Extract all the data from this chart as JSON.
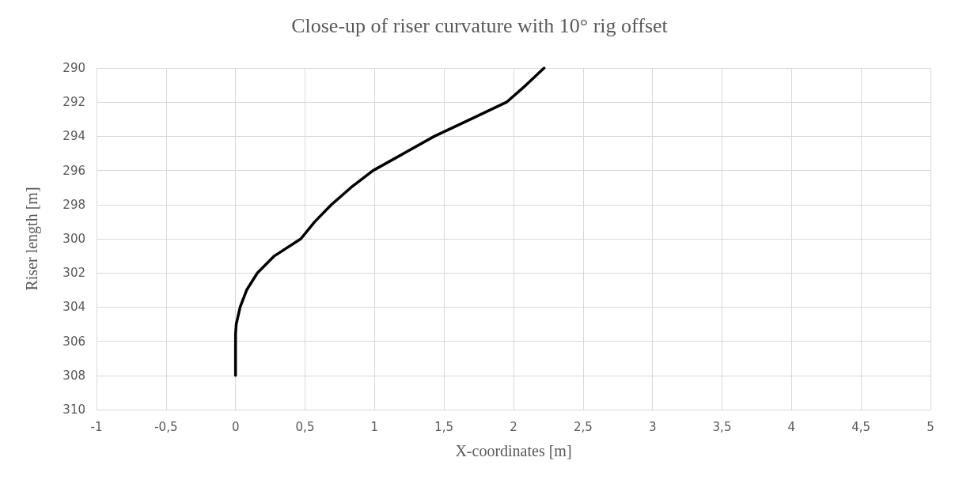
{
  "chart_data": {
    "type": "line",
    "title": "Close-up of riser curvature with 10° rig offset",
    "xlabel": "X-coordinates [m]",
    "ylabel": "Riser length [m]",
    "series": [
      {
        "color": "#000000",
        "x": [
          0,
          0,
          0.005,
          0.033,
          0.08,
          0.157,
          0.28,
          0.47,
          0.57,
          0.69,
          0.83,
          0.99,
          1.21,
          1.43,
          1.69,
          1.95,
          2.09,
          2.22
        ],
        "values": [
          308,
          305.6,
          305,
          304,
          303,
          302,
          301,
          300,
          299,
          298,
          297,
          296,
          295,
          294,
          293,
          292,
          291,
          290
        ]
      }
    ],
    "xlim": [
      -1,
      5
    ],
    "xticks": [
      -1,
      {
        "value": -0.5,
        "label": "-0,5"
      },
      0,
      {
        "value": 0.5,
        "label": "0,5"
      },
      1,
      {
        "value": 1.5,
        "label": "1,5"
      },
      2,
      {
        "value": 2.5,
        "label": "2,5"
      },
      3,
      {
        "value": 3.5,
        "label": "3,5"
      },
      4,
      {
        "value": 4.5,
        "label": "4,5"
      },
      5
    ],
    "ylim": [
      310,
      290
    ],
    "yticks": [
      290,
      292,
      294,
      296,
      298,
      300,
      302,
      304,
      306,
      308,
      310
    ],
    "grid": true,
    "marker": "none",
    "line_style": "solid"
  }
}
